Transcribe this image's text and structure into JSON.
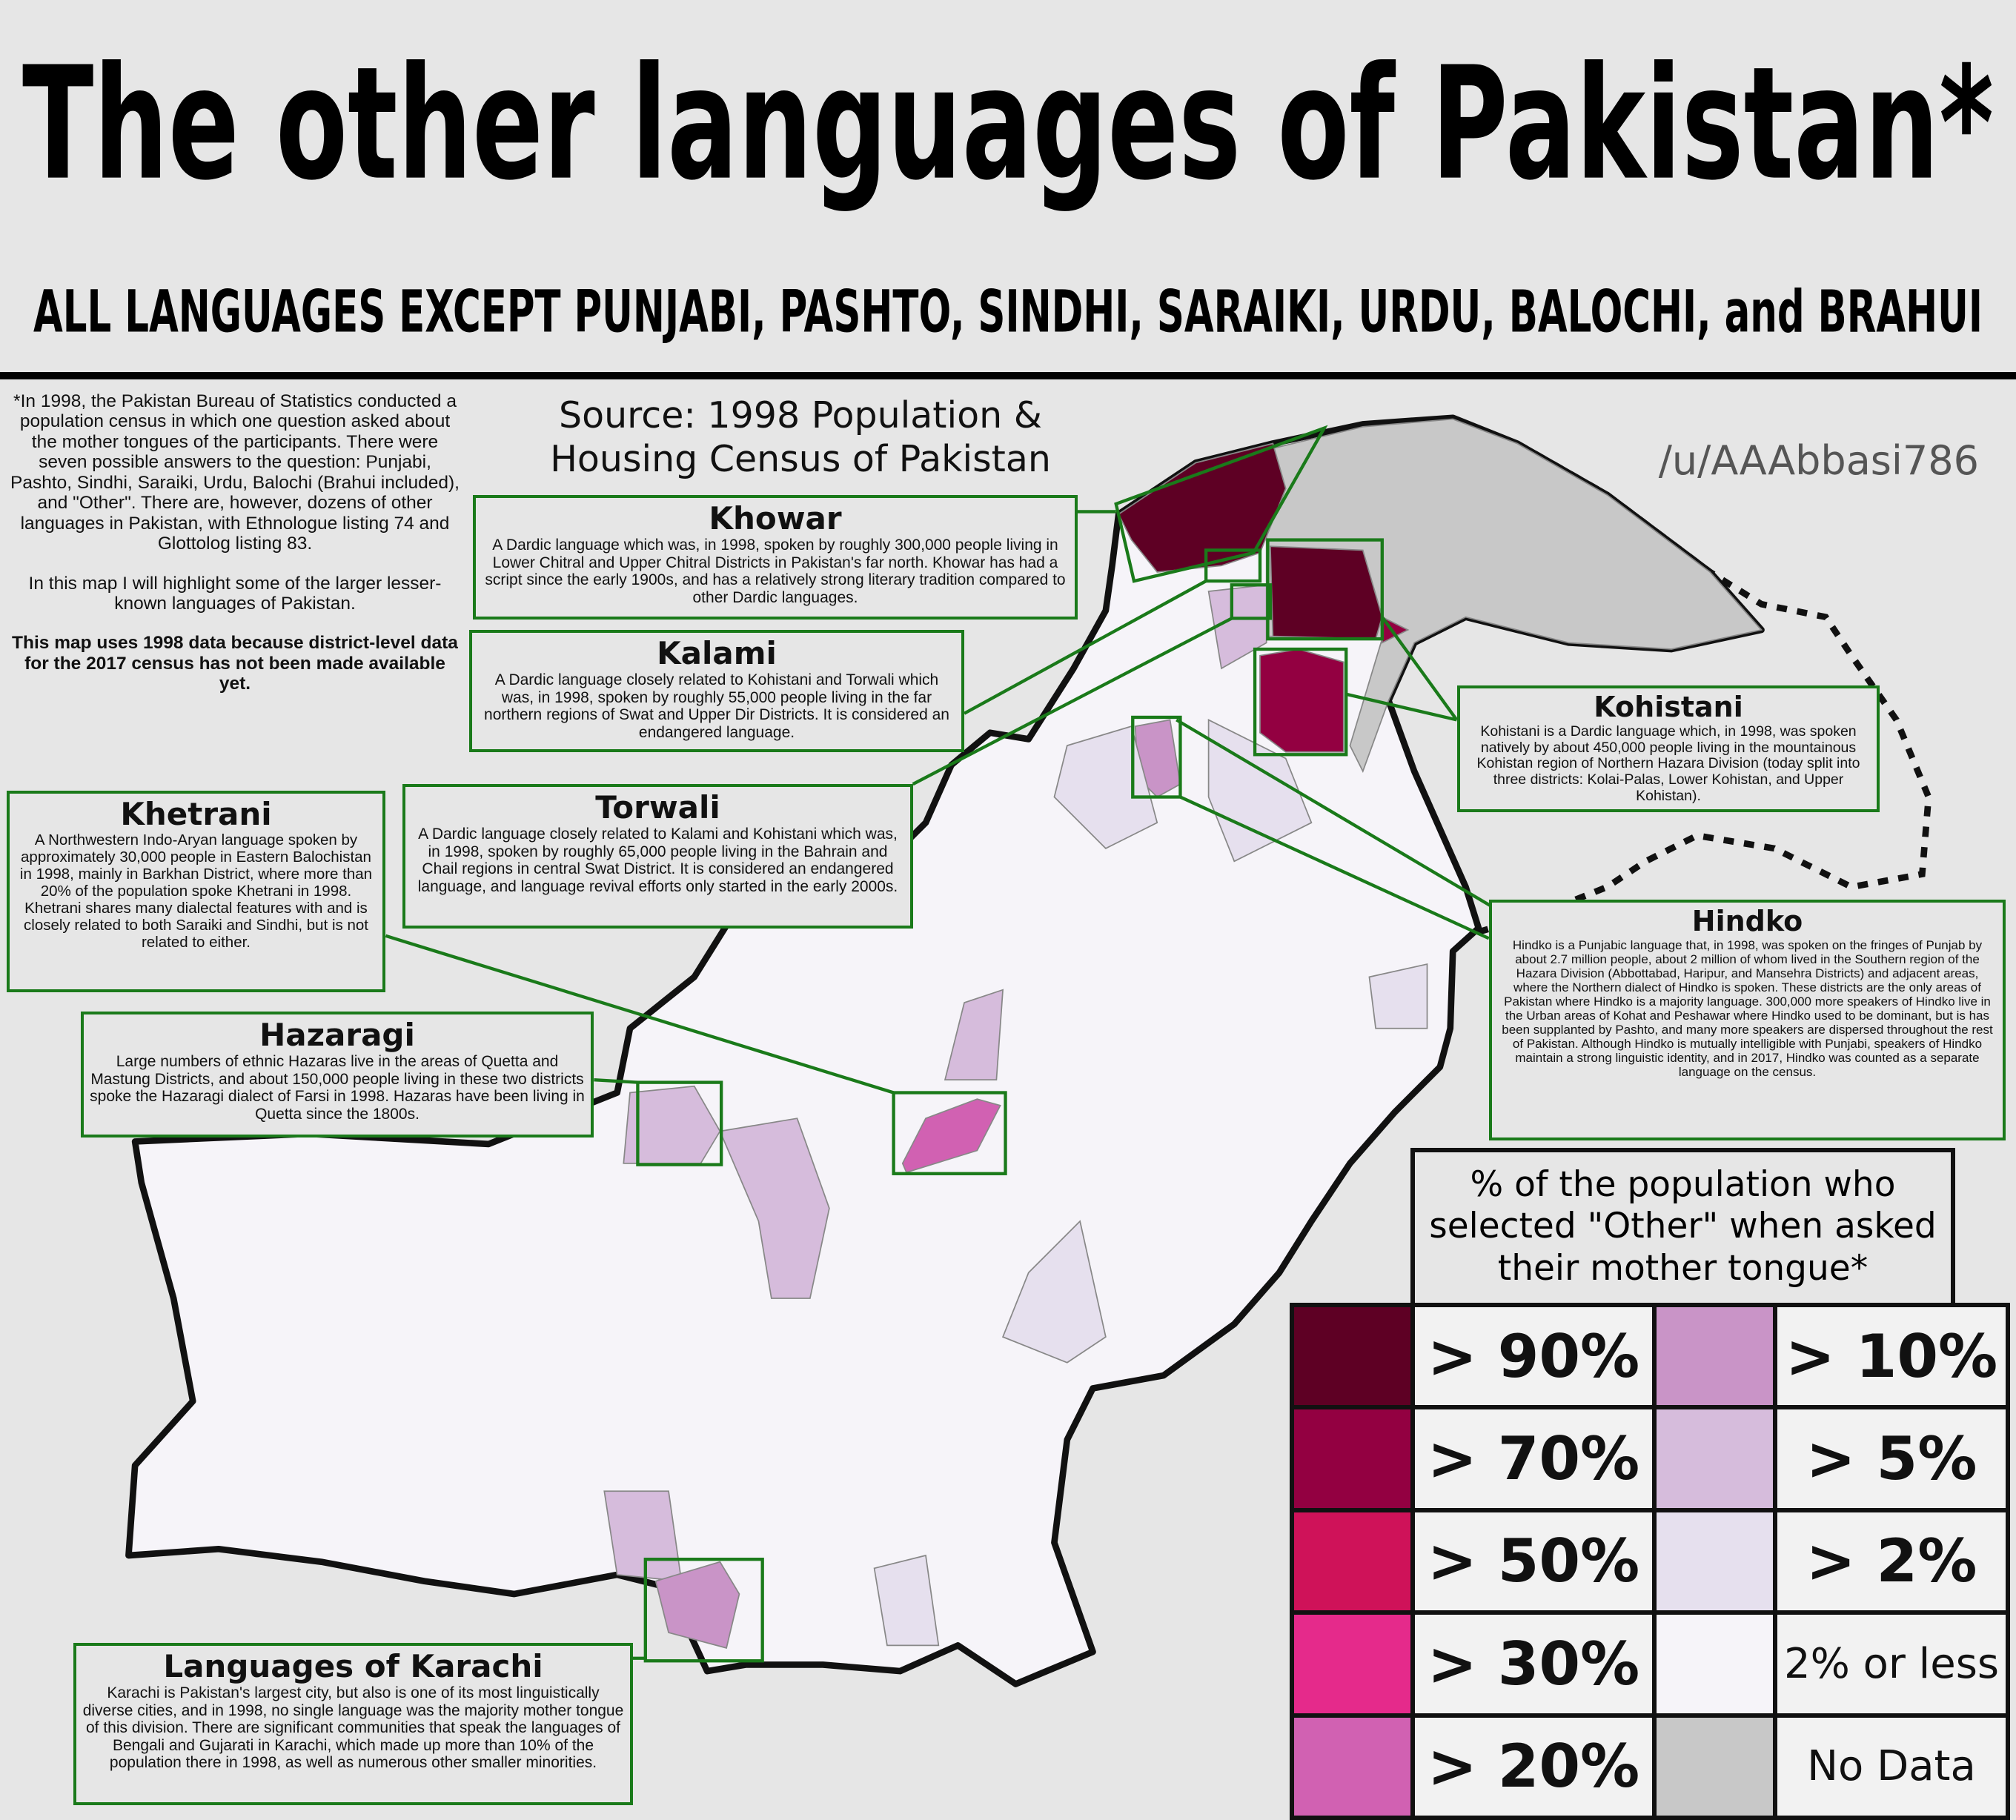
{
  "title": "The other languages of Pakistan*",
  "subtitle": "ALL LANGUAGES EXCEPT PUNJABI, PASHTO, SINDHI, SARAIKI, URDU, BALOCHI, and BRAHUI",
  "note": [
    "*In 1998, the Pakistan Bureau of Statistics conducted a population census in which one question asked about the mother tongues of the participants. There were seven possible answers to the question: Punjabi, Pashto, Sindhi, Saraiki, Urdu, Balochi (Brahui included), and \"Other\". There are, however, dozens of other languages in Pakistan, with Ethnologue listing 74 and Glottolog listing 83.",
    "In this map I will highlight some of the larger lesser-known languages of Pakistan.",
    "This map uses 1998 data because district-level data for the 2017 census has not been made available yet."
  ],
  "source": "Source: 1998 Population & Housing Census of Pakistan",
  "credit": "/u/AAAbbasi786",
  "callouts": [
    {
      "title": "Khowar",
      "text": "A Dardic language which was, in 1998, spoken by roughly 300,000 people living in Lower Chitral and Upper Chitral Districts in Pakistan's far north. Khowar has had a script since the early 1900s, and has a relatively strong literary tradition compared to other Dardic languages."
    },
    {
      "title": "Kalami",
      "text": "A Dardic language closely related to Kohistani and Torwali which was, in 1998, spoken by roughly 55,000 people living in the far northern regions of Swat and Upper Dir Districts. It is considered an endangered language."
    },
    {
      "title": "Torwali",
      "text": "A Dardic language closely related to Kalami and Kohistani which was, in 1998, spoken by roughly 65,000 people living in the Bahrain and Chail regions in central Swat District. It is considered an endangered language, and language revival efforts only started in the early 2000s."
    },
    {
      "title": "Khetrani",
      "text": "A Northwestern Indo-Aryan language spoken by approximately 30,000 people in Eastern Balochistan in 1998, mainly in Barkhan District, where more than 20% of the population spoke Khetrani in 1998. Khetrani shares many dialectal features with and is closely related to both Saraiki and Sindhi, but is not related to either."
    },
    {
      "title": "Hazaragi",
      "text": "Large numbers of ethnic Hazaras live in the areas of Quetta and Mastung Districts, and about 150,000 people living in these two districts spoke the Hazaragi dialect of Farsi in 1998. Hazaras have been living in Quetta since the 1800s."
    },
    {
      "title": "Kohistani",
      "text": "Kohistani is a Dardic language which, in 1998, was spoken natively by about 450,000 people living in the mountainous Kohistan region of Northern Hazara Division (today split into three districts: Kolai-Palas, Lower Kohistan, and Upper Kohistan)."
    },
    {
      "title": "Hindko",
      "text": "Hindko is a Punjabic language that, in 1998, was spoken on the fringes of Punjab by about 2.7 million people, about 2 million of whom lived in the Southern region of the Hazara Division (Abbottabad, Haripur, and Mansehra Districts) and adjacent areas, where the Northern dialect of Hindko is spoken. These districts are the only areas of Pakistan where Hindko is a majority language. 300,000 more speakers of Hindko live in the Urban areas of Kohat and Peshawar where Hindko used to be dominant, but is has been supplanted by Pashto, and many more speakers are dispersed throughout the rest of Pakistan. Although Hindko is mutually intelligible with Punjabi, speakers of Hindko maintain a strong linguistic identity, and in 2017, Hindko was counted as a separate language on the census."
    },
    {
      "title": "Languages of Karachi",
      "text": "Karachi is Pakistan's largest city, but also is one of its most linguistically diverse cities, and in 1998, no single language was the majority mother tongue of this division. There are significant communities that speak the languages of Bengali and Gujarati in Karachi, which made up more than 10% of the population there in 1998, as well as numerous other smaller minorities."
    }
  ],
  "legend": {
    "title": "% of the population who selected \"Other\" when asked their mother tongue*",
    "items": [
      {
        "label": "> 90%",
        "color": "#5e0024"
      },
      {
        "label": "> 70%",
        "color": "#930041"
      },
      {
        "label": "> 50%",
        "color": "#cf1259"
      },
      {
        "label": "> 30%",
        "color": "#e52a8b"
      },
      {
        "label": "> 20%",
        "color": "#d161b2"
      },
      {
        "label": "> 10%",
        "color": "#c994c7"
      },
      {
        "label": "> 5%",
        "color": "#d6bcdc"
      },
      {
        "label": "> 2%",
        "color": "#e6e0ee"
      },
      {
        "label": "2% or less",
        "color": "#f6f4f9"
      },
      {
        "label": "No Data",
        "color": "#c8c8c8"
      }
    ]
  }
}
